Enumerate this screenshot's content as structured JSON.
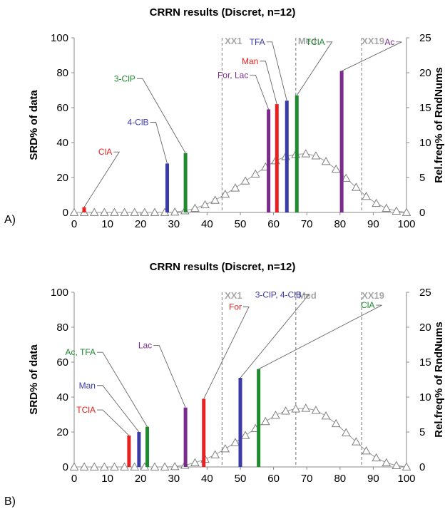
{
  "chart_data": [
    {
      "type": "bar",
      "panel_label": "A)",
      "title": "CRRN results (Discret, n=12)",
      "ylabel": "SRD% of data",
      "y2label": "Rel.freq% of RndNums",
      "xlim": [
        0,
        100
      ],
      "ylim": [
        0,
        100
      ],
      "y2lim": [
        0,
        25
      ],
      "x_ticks": [
        "0",
        "10",
        "20",
        "30",
        "40",
        "50",
        "60",
        "70",
        "80",
        "90",
        "100"
      ],
      "y_ticks": [
        "0",
        "20",
        "40",
        "60",
        "80",
        "100"
      ],
      "y2_ticks": [
        "0",
        "5",
        "10",
        "15",
        "20",
        "25"
      ],
      "grid": false,
      "colors": {
        "red": "#e8201f",
        "blue": "#3a3aa8",
        "green": "#1f8a2e",
        "purple": "#7c2a8c",
        "triangle": "#999999",
        "refline": "#777777",
        "reftext": "#a7a7a7"
      },
      "reference_lines": [
        {
          "x": 44.5,
          "label": "XX1"
        },
        {
          "x": 66.7,
          "label": "Med"
        },
        {
          "x": 86.5,
          "label": "XX19"
        }
      ],
      "bars": [
        {
          "x": 3,
          "value": 3,
          "color": "red"
        },
        {
          "x": 28,
          "value": 28,
          "color": "blue"
        },
        {
          "x": 33.5,
          "value": 34,
          "color": "green"
        },
        {
          "x": 58.5,
          "value": 59,
          "color": "purple"
        },
        {
          "x": 61,
          "value": 62,
          "color": "red"
        },
        {
          "x": 64,
          "value": 64,
          "color": "blue"
        },
        {
          "x": 67,
          "value": 67,
          "color": "green"
        },
        {
          "x": 80.5,
          "value": 81,
          "color": "purple"
        }
      ],
      "labels": [
        {
          "text": "ClA",
          "color": "red",
          "bar": 0,
          "lx": 8,
          "ly": 33
        },
        {
          "text": "4-ClB",
          "color": "blue",
          "bar": 1,
          "lx": 19,
          "ly": 50
        },
        {
          "text": "3-ClP",
          "color": "green",
          "bar": 2,
          "lx": 15,
          "ly": 75
        },
        {
          "text": "For, Lac",
          "color": "purple",
          "bar": 3,
          "lx": 49,
          "ly": 77
        },
        {
          "text": "Man",
          "color": "red",
          "bar": 4,
          "lx": 52,
          "ly": 85
        },
        {
          "text": "TFA",
          "color": "blue",
          "bar": 5,
          "lx": 54,
          "ly": 96
        },
        {
          "text": "TClA",
          "color": "green",
          "bar": 6,
          "lx": 72,
          "ly": 96
        },
        {
          "text": "Ac",
          "color": "purple",
          "bar": 7,
          "lx": 93,
          "ly": 96
        }
      ],
      "distribution": {
        "name": "Rel.freq% of RndNums",
        "x": [
          0,
          3.03,
          6.06,
          9.09,
          12.12,
          15.15,
          18.18,
          21.21,
          24.24,
          27.27,
          30.3,
          33.33,
          36.36,
          39.39,
          42.42,
          45.45,
          48.48,
          51.52,
          54.55,
          57.58,
          60.61,
          63.64,
          66.67,
          69.7,
          72.73,
          75.76,
          78.79,
          81.82,
          84.85,
          87.88,
          90.91,
          93.94,
          96.97,
          100
        ],
        "values": [
          0,
          0,
          0,
          0,
          0,
          0,
          0,
          0,
          0,
          0,
          0.05,
          0.25,
          0.6,
          1.1,
          1.75,
          2.6,
          3.5,
          4.5,
          5.5,
          6.5,
          7.4,
          8.0,
          8.3,
          8.4,
          8.1,
          7.3,
          6.2,
          4.9,
          3.6,
          2.3,
          1.3,
          0.6,
          0.2,
          0
        ]
      }
    },
    {
      "type": "bar",
      "panel_label": "B)",
      "title": "CRRN results (Discret, n=12)",
      "ylabel": "SRD% of data",
      "y2label": "Rel.freq% of RndNums",
      "xlim": [
        0,
        100
      ],
      "ylim": [
        0,
        100
      ],
      "y2lim": [
        0,
        25
      ],
      "x_ticks": [
        "0",
        "10",
        "20",
        "30",
        "40",
        "50",
        "60",
        "70",
        "80",
        "90",
        "100"
      ],
      "y_ticks": [
        "0",
        "20",
        "40",
        "60",
        "80",
        "100"
      ],
      "y2_ticks": [
        "0",
        "5",
        "10",
        "15",
        "20",
        "25"
      ],
      "grid": false,
      "colors": {
        "red": "#e8201f",
        "blue": "#3a3aa8",
        "green": "#1f8a2e",
        "purple": "#7c2a8c",
        "triangle": "#999999",
        "refline": "#777777",
        "reftext": "#a7a7a7"
      },
      "reference_lines": [
        {
          "x": 44.5,
          "label": "XX1"
        },
        {
          "x": 66.7,
          "label": "Med"
        },
        {
          "x": 86.5,
          "label": "XX19"
        }
      ],
      "bars": [
        {
          "x": 16.5,
          "value": 18,
          "color": "red"
        },
        {
          "x": 19.5,
          "value": 20,
          "color": "blue"
        },
        {
          "x": 22,
          "value": 23,
          "color": "green"
        },
        {
          "x": 33.5,
          "value": 34,
          "color": "purple"
        },
        {
          "x": 39,
          "value": 39,
          "color": "red"
        },
        {
          "x": 50,
          "value": 51,
          "color": "blue"
        },
        {
          "x": 55.5,
          "value": 56,
          "color": "green"
        }
      ],
      "labels": [
        {
          "text": "TClA",
          "color": "red",
          "bar": 0,
          "lx": 3,
          "ly": 31
        },
        {
          "text": "Man",
          "color": "blue",
          "bar": 1,
          "lx": 3,
          "ly": 45
        },
        {
          "text": "Ac, TFA",
          "color": "green",
          "bar": 2,
          "lx": 3,
          "ly": 64
        },
        {
          "text": "Lac",
          "color": "purple",
          "bar": 3,
          "lx": 20,
          "ly": 68
        },
        {
          "text": "For",
          "color": "red",
          "bar": 4,
          "lx": 47,
          "ly": 90
        },
        {
          "text": "3-ClP, 4-ClB",
          "color": "blue",
          "bar": 5,
          "lx": 65,
          "ly": 97
        },
        {
          "text": "ClA",
          "color": "green",
          "bar": 6,
          "lx": 87,
          "ly": 91
        }
      ],
      "distribution": {
        "name": "Rel.freq% of RndNums",
        "x": [
          0,
          3.03,
          6.06,
          9.09,
          12.12,
          15.15,
          18.18,
          21.21,
          24.24,
          27.27,
          30.3,
          33.33,
          36.36,
          39.39,
          42.42,
          45.45,
          48.48,
          51.52,
          54.55,
          57.58,
          60.61,
          63.64,
          66.67,
          69.7,
          72.73,
          75.76,
          78.79,
          81.82,
          84.85,
          87.88,
          90.91,
          93.94,
          96.97,
          100
        ],
        "values": [
          0,
          0,
          0,
          0,
          0,
          0,
          0,
          0,
          0,
          0,
          0.05,
          0.25,
          0.6,
          1.1,
          1.75,
          2.6,
          3.5,
          4.5,
          5.5,
          6.5,
          7.4,
          8.0,
          8.3,
          8.4,
          8.1,
          7.3,
          6.2,
          4.9,
          3.6,
          2.3,
          1.3,
          0.6,
          0.2,
          0
        ]
      }
    }
  ]
}
